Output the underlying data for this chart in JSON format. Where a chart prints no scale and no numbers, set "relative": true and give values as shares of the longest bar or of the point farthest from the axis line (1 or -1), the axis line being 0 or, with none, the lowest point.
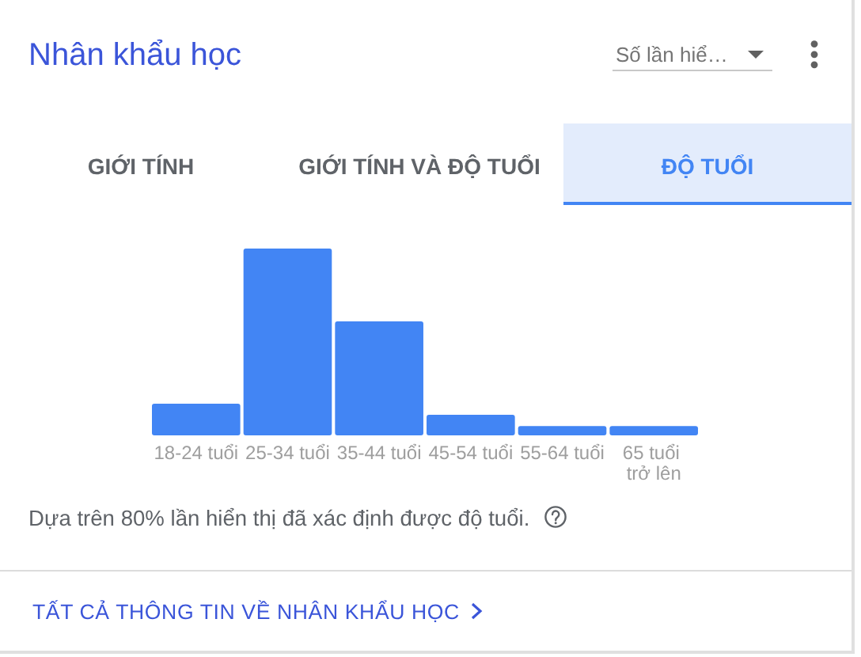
{
  "chart_data": {
    "type": "bar",
    "title": "Nhân khẩu học",
    "categories": [
      "18-24 tuổi",
      "25-34 tuổi",
      "35-44 tuổi",
      "45-54 tuổi",
      "55-64 tuổi",
      "65 tuổi trở lên"
    ],
    "values": [
      0.17,
      1,
      0.61,
      0.11,
      0.05,
      0.05
    ],
    "color": "#4285f4",
    "relative": true,
    "annotations": [
      "Số lần hiể…",
      "GIỚI TÍNH",
      "GIỚI TÍNH VÀ ĐỘ TUỔI",
      "ĐỘ TUỔI",
      "Dựa trên 80% lần hiển thị đã xác định được độ tuổi.",
      "TẤT CẢ THÔNG TIN VỀ NHÂN KHẨU HỌC"
    ]
  }
}
